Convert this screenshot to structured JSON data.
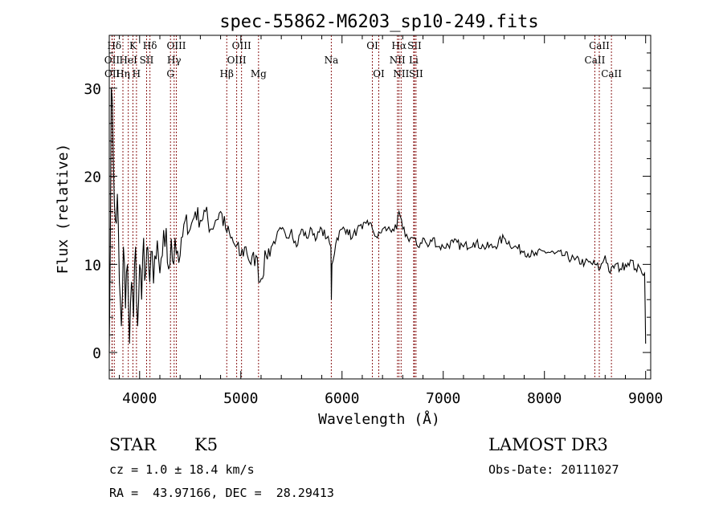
{
  "chart_data": {
    "type": "line",
    "title": "spec-55862-M6203_sp10-249.fits",
    "xlabel": "Wavelength (Å)",
    "ylabel": "Flux (relative)",
    "xlim": [
      3700,
      9050
    ],
    "ylim": [
      -3,
      36
    ],
    "xticks": [
      4000,
      5000,
      6000,
      7000,
      8000,
      9000
    ],
    "xtick_labels": [
      "4000",
      "5000",
      "6000",
      "7000",
      "8000",
      "9000"
    ],
    "yticks": [
      0,
      10,
      20,
      30
    ],
    "ytick_labels": [
      "0",
      "10",
      "20",
      "30"
    ],
    "grid": false,
    "series": [
      {
        "name": "flux",
        "x": [
          3700,
          3720,
          3740,
          3760,
          3780,
          3800,
          3820,
          3840,
          3860,
          3880,
          3900,
          3920,
          3940,
          3960,
          3980,
          4000,
          4020,
          4040,
          4060,
          4080,
          4100,
          4150,
          4200,
          4250,
          4300,
          4350,
          4400,
          4450,
          4500,
          4550,
          4600,
          4650,
          4700,
          4750,
          4800,
          4850,
          4900,
          4950,
          5000,
          5050,
          5100,
          5150,
          5190,
          5250,
          5300,
          5350,
          5400,
          5450,
          5500,
          5550,
          5600,
          5650,
          5700,
          5750,
          5800,
          5850,
          5890,
          5895,
          5900,
          5950,
          6000,
          6050,
          6100,
          6150,
          6200,
          6250,
          6300,
          6350,
          6400,
          6450,
          6500,
          6540,
          6563,
          6600,
          6650,
          6700,
          6750,
          6800,
          6850,
          6900,
          6950,
          7000,
          7100,
          7200,
          7300,
          7400,
          7500,
          7600,
          7700,
          7800,
          7900,
          8000,
          8100,
          8200,
          8300,
          8400,
          8500,
          8550,
          8600,
          8650,
          8700,
          8750,
          8800,
          8850,
          8900,
          8950,
          8990,
          9000
        ],
        "y": [
          0,
          30,
          22,
          15,
          18,
          8,
          3,
          12,
          5,
          10,
          1,
          8,
          4,
          12,
          3,
          10,
          6,
          13,
          9,
          12,
          8,
          11,
          9,
          12,
          10,
          13,
          11,
          15,
          14,
          16,
          15,
          16,
          14,
          15,
          16,
          14,
          13,
          12,
          11,
          12,
          10,
          11,
          8,
          11,
          12,
          13,
          14,
          13,
          14,
          12,
          14,
          13,
          14,
          13,
          14,
          13,
          12,
          6,
          10,
          13,
          14,
          14,
          13,
          14,
          14,
          15,
          14,
          13,
          14,
          14,
          14,
          14,
          16,
          14,
          13,
          13,
          12,
          13,
          12,
          13,
          12,
          12,
          12.5,
          12,
          12.5,
          12,
          12,
          13,
          12,
          11.5,
          11,
          11.5,
          11.2,
          11,
          10.5,
          10.2,
          10,
          9.5,
          11,
          9,
          10,
          9.5,
          10,
          10.5,
          9.5,
          9.5,
          9,
          1
        ]
      }
    ],
    "lines": [
      {
        "name": "Hδ",
        "wave": 3750,
        "row": 0
      },
      {
        "name": "OII",
        "wave": 3727,
        "row": 1
      },
      {
        "name": "OII",
        "wave": 3729,
        "row": 2
      },
      {
        "name": "K",
        "wave": 3934,
        "row": 0
      },
      {
        "name": "HeI",
        "wave": 3888,
        "row": 1
      },
      {
        "name": "Hη",
        "wave": 3835,
        "row": 2
      },
      {
        "name": "Hδ",
        "wave": 4102,
        "row": 0
      },
      {
        "name": "SII",
        "wave": 4069,
        "row": 1
      },
      {
        "name": "H",
        "wave": 3969,
        "row": 2
      },
      {
        "name": "OIII",
        "wave": 4363,
        "row": 0
      },
      {
        "name": "Hγ",
        "wave": 4341,
        "row": 1
      },
      {
        "name": "G",
        "wave": 4305,
        "row": 2
      },
      {
        "name": "OIII",
        "wave": 5007,
        "row": 0
      },
      {
        "name": "OIII",
        "wave": 4959,
        "row": 1
      },
      {
        "name": "Hβ",
        "wave": 4861,
        "row": 2
      },
      {
        "name": "Mg",
        "wave": 5175,
        "row": 2
      },
      {
        "name": "Na",
        "wave": 5894,
        "row": 1
      },
      {
        "name": "OI",
        "wave": 6300,
        "row": 0
      },
      {
        "name": "OI",
        "wave": 6363,
        "row": 2
      },
      {
        "name": "Hα",
        "wave": 6563,
        "row": 0
      },
      {
        "name": "SII",
        "wave": 6716,
        "row": 0
      },
      {
        "name": "NII",
        "wave": 6548,
        "row": 1
      },
      {
        "name": "Li",
        "wave": 6708,
        "row": 1
      },
      {
        "name": "NII",
        "wave": 6584,
        "row": 2
      },
      {
        "name": "SII",
        "wave": 6731,
        "row": 2
      },
      {
        "name": "CaII",
        "wave": 8542,
        "row": 0
      },
      {
        "name": "CaII",
        "wave": 8498,
        "row": 1
      },
      {
        "name": "CaII",
        "wave": 8662,
        "row": 2
      }
    ]
  },
  "footer": {
    "object_class": "STAR",
    "subclass": "K5",
    "survey": "LAMOST DR3",
    "cz": "cz = 1.0 ± 18.4 km/s",
    "obs_date": "Obs-Date: 20111027",
    "coords": "RA =  43.97166, DEC =  28.29413"
  },
  "colors": {
    "line_marker": "#8b1a1a",
    "spectrum": "#000000",
    "axes": "#000000"
  }
}
